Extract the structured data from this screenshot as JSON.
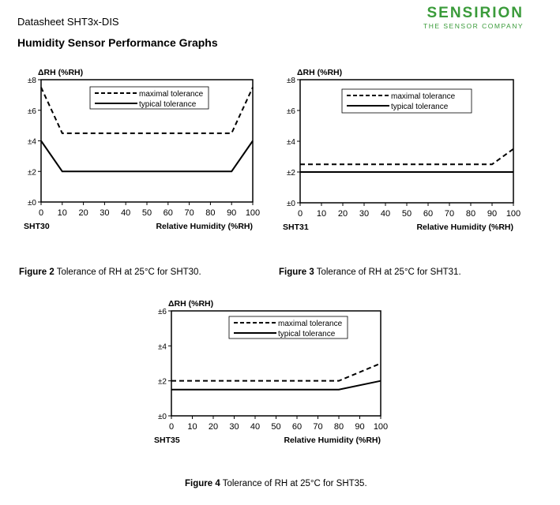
{
  "header": {
    "doc_title": "Datasheet SHT3x-DIS",
    "section_title": "Humidity Sensor Performance Graphs",
    "logo_name": "SENSIRION",
    "logo_tagline": "THE SENSOR COMPANY"
  },
  "captions": [
    {
      "figure": "Figure 2",
      "text": " Tolerance of RH at 25°C for SHT30."
    },
    {
      "figure": "Figure 3",
      "text": " Tolerance of RH at 25°C for SHT31."
    },
    {
      "figure": "Figure 4",
      "text": " Tolerance of RH at 25°C for SHT35."
    }
  ],
  "chart_data": [
    {
      "type": "line",
      "sensor_label": "SHT30",
      "ylabel": "ΔRH (%RH)",
      "xlabel": "Relative Humidity (%RH)",
      "xlim": [
        0,
        100
      ],
      "ylim": [
        0,
        8
      ],
      "xticks": [
        0,
        10,
        20,
        30,
        40,
        50,
        60,
        70,
        80,
        90,
        100
      ],
      "yticks": [
        {
          "v": 0,
          "label": "±0"
        },
        {
          "v": 2,
          "label": "±2"
        },
        {
          "v": 4,
          "label": "±4"
        },
        {
          "v": 6,
          "label": "±6"
        },
        {
          "v": 8,
          "label": "±8"
        }
      ],
      "grid": false,
      "legend_position": "top-center",
      "series": [
        {
          "name": "maximal tolerance",
          "style": "dashed",
          "points": [
            [
              0,
              7.5
            ],
            [
              10,
              4.5
            ],
            [
              90,
              4.5
            ],
            [
              100,
              7.5
            ]
          ]
        },
        {
          "name": "typical tolerance",
          "style": "solid",
          "points": [
            [
              0,
              4
            ],
            [
              10,
              2
            ],
            [
              90,
              2
            ],
            [
              100,
              4
            ]
          ]
        }
      ]
    },
    {
      "type": "line",
      "sensor_label": "SHT31",
      "ylabel": "ΔRH (%RH)",
      "xlabel": "Relative Humidity (%RH)",
      "xlim": [
        0,
        100
      ],
      "ylim": [
        0,
        8
      ],
      "xticks": [
        0,
        10,
        20,
        30,
        40,
        50,
        60,
        70,
        80,
        90,
        100
      ],
      "yticks": [
        {
          "v": 0,
          "label": "±0"
        },
        {
          "v": 2,
          "label": "±2"
        },
        {
          "v": 4,
          "label": "±4"
        },
        {
          "v": 6,
          "label": "±6"
        },
        {
          "v": 8,
          "label": "±8"
        }
      ],
      "grid": false,
      "legend_position": "top-center",
      "series": [
        {
          "name": "maximal tolerance",
          "style": "dashed",
          "points": [
            [
              0,
              2.5
            ],
            [
              90,
              2.5
            ],
            [
              100,
              3.5
            ]
          ]
        },
        {
          "name": "typical tolerance",
          "style": "solid",
          "points": [
            [
              0,
              2
            ],
            [
              100,
              2
            ]
          ]
        }
      ]
    },
    {
      "type": "line",
      "sensor_label": "SHT35",
      "ylabel": "ΔRH (%RH)",
      "xlabel": "Relative Humidity (%RH)",
      "xlim": [
        0,
        100
      ],
      "ylim": [
        0,
        6
      ],
      "xticks": [
        0,
        10,
        20,
        30,
        40,
        50,
        60,
        70,
        80,
        90,
        100
      ],
      "yticks": [
        {
          "v": 0,
          "label": "±0"
        },
        {
          "v": 2,
          "label": "±2"
        },
        {
          "v": 4,
          "label": "±4"
        },
        {
          "v": 6,
          "label": "±6"
        }
      ],
      "grid": false,
      "legend_position": "top-center",
      "series": [
        {
          "name": "maximal tolerance",
          "style": "dashed",
          "points": [
            [
              0,
              2
            ],
            [
              80,
              2
            ],
            [
              100,
              3
            ]
          ]
        },
        {
          "name": "typical tolerance",
          "style": "solid",
          "points": [
            [
              0,
              1.5
            ],
            [
              80,
              1.5
            ],
            [
              100,
              2
            ]
          ]
        }
      ]
    }
  ]
}
